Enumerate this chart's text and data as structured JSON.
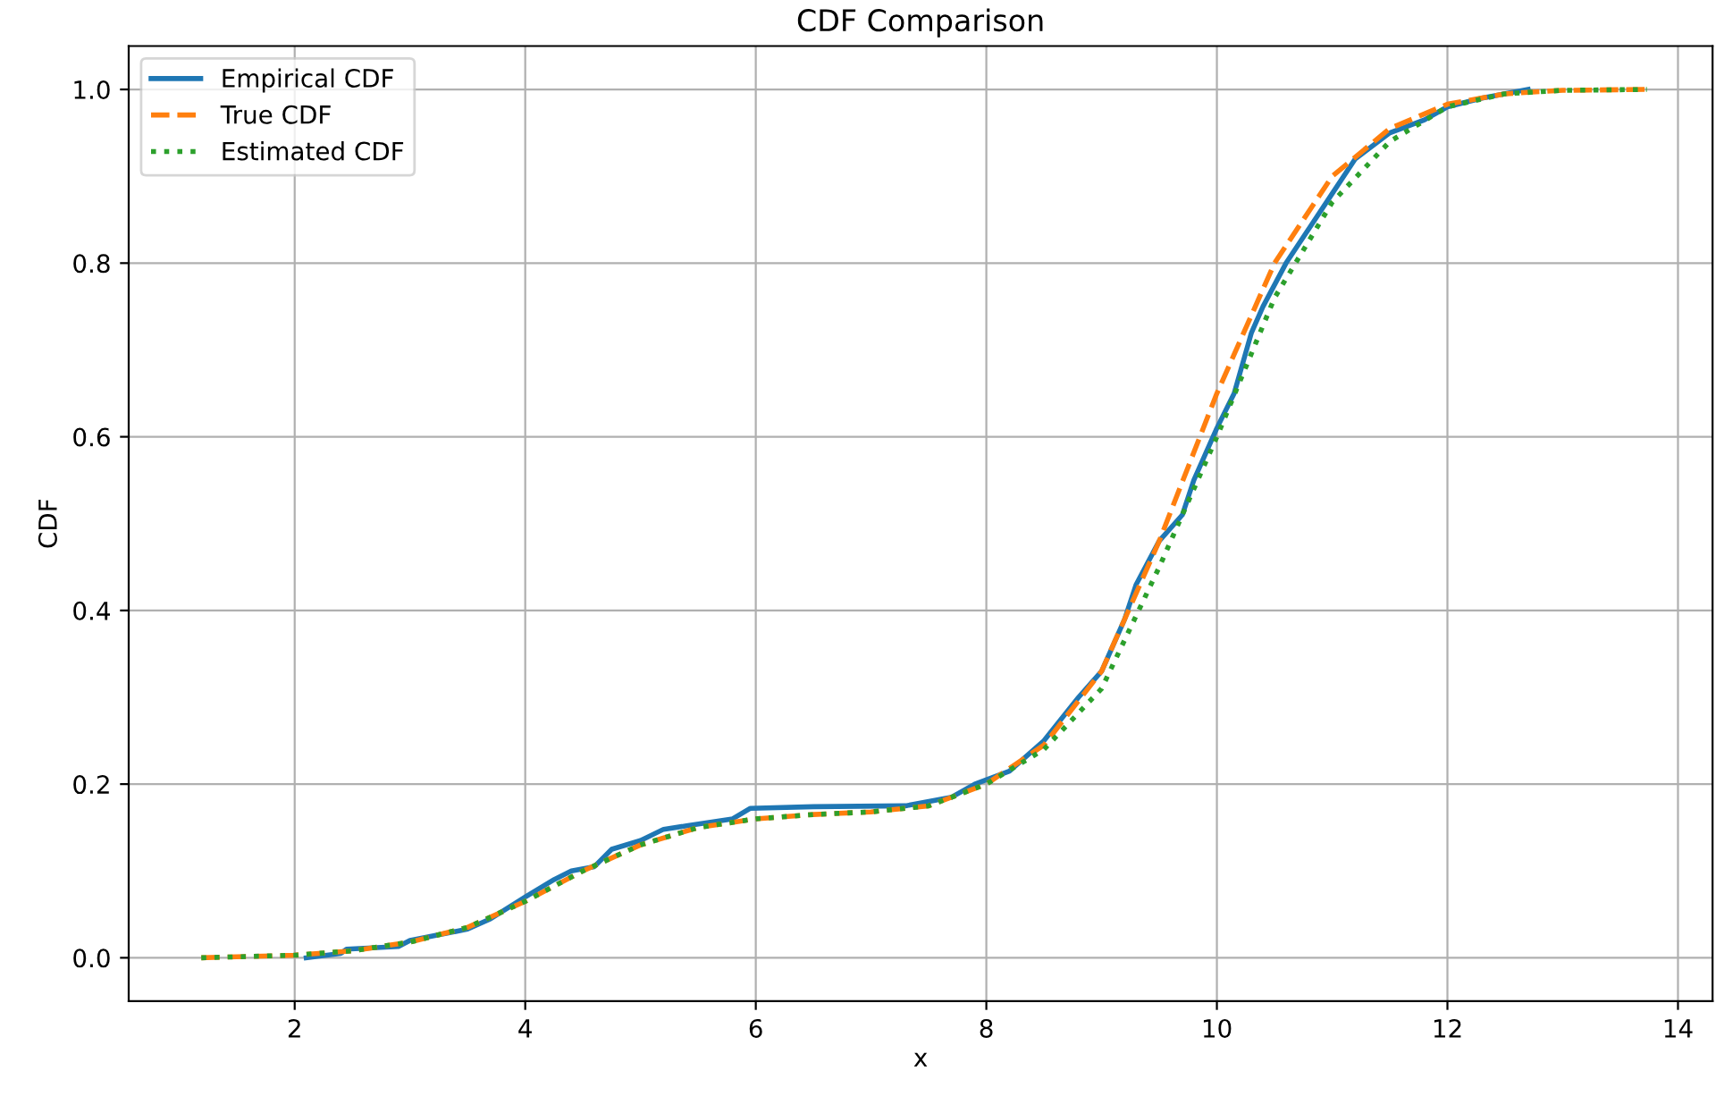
{
  "chart_data": {
    "type": "line",
    "title": "CDF Comparison",
    "xlabel": "x",
    "ylabel": "CDF",
    "xlim": [
      0.56,
      14.3
    ],
    "ylim": [
      -0.05,
      1.05
    ],
    "xticks": [
      2,
      4,
      6,
      8,
      10,
      12,
      14
    ],
    "yticks": [
      {
        "value": 0,
        "label": "0.0"
      },
      0.2,
      0.4,
      0.6,
      0.8,
      {
        "value": 1,
        "label": "1.0"
      }
    ],
    "grid": true,
    "legend": "top left",
    "series": [
      {
        "name": "Empirical CDF",
        "color": "#1f77b4",
        "line_style": "solid",
        "x": [
          2.1,
          2.4,
          2.45,
          2.9,
          3.0,
          3.5,
          3.7,
          4.0,
          4.25,
          4.4,
          4.6,
          4.75,
          5.0,
          5.2,
          5.4,
          5.8,
          5.95,
          6.5,
          7.3,
          7.7,
          7.9,
          8.2,
          8.5,
          8.8,
          9.0,
          9.2,
          9.3,
          9.5,
          9.7,
          9.8,
          10.0,
          10.15,
          10.3,
          10.4,
          10.6,
          10.8,
          11.0,
          11.2,
          11.5,
          11.8,
          12.0,
          12.3,
          12.7
        ],
        "values": [
          0,
          0.005,
          0.01,
          0.013,
          0.02,
          0.033,
          0.045,
          0.07,
          0.09,
          0.1,
          0.105,
          0.125,
          0.135,
          0.148,
          0.152,
          0.16,
          0.172,
          0.174,
          0.175,
          0.185,
          0.2,
          0.215,
          0.25,
          0.3,
          0.33,
          0.39,
          0.43,
          0.48,
          0.51,
          0.55,
          0.61,
          0.65,
          0.72,
          0.75,
          0.8,
          0.84,
          0.88,
          0.92,
          0.95,
          0.965,
          0.98,
          0.99,
          1.0
        ]
      },
      {
        "name": "True CDF",
        "color": "#ff7f0e",
        "line_style": "dashed",
        "x": [
          1.19,
          2,
          2.5,
          3,
          3.5,
          4,
          4.5,
          5,
          5.5,
          6,
          6.5,
          7,
          7.5,
          8,
          8.5,
          9,
          9.5,
          10,
          10.5,
          11,
          11.5,
          12,
          12.5,
          13,
          13.73
        ],
        "values": [
          0,
          0.003,
          0.008,
          0.018,
          0.035,
          0.065,
          0.1,
          0.13,
          0.15,
          0.16,
          0.165,
          0.168,
          0.175,
          0.2,
          0.245,
          0.33,
          0.48,
          0.65,
          0.8,
          0.9,
          0.955,
          0.983,
          0.995,
          0.999,
          1.0
        ]
      },
      {
        "name": "Estimated CDF",
        "color": "#2ca02c",
        "line_style": "dotted",
        "x": [
          1.19,
          2,
          2.5,
          3,
          3.5,
          4,
          4.5,
          5,
          5.5,
          6,
          6.5,
          7,
          7.5,
          8,
          8.5,
          9,
          9.5,
          10,
          10.5,
          11,
          11.5,
          12,
          12.5,
          13,
          13.73
        ],
        "values": [
          0,
          0.003,
          0.008,
          0.018,
          0.035,
          0.065,
          0.1,
          0.13,
          0.15,
          0.16,
          0.165,
          0.168,
          0.175,
          0.2,
          0.24,
          0.31,
          0.45,
          0.6,
          0.76,
          0.87,
          0.94,
          0.98,
          0.995,
          0.999,
          1.0
        ]
      }
    ]
  }
}
